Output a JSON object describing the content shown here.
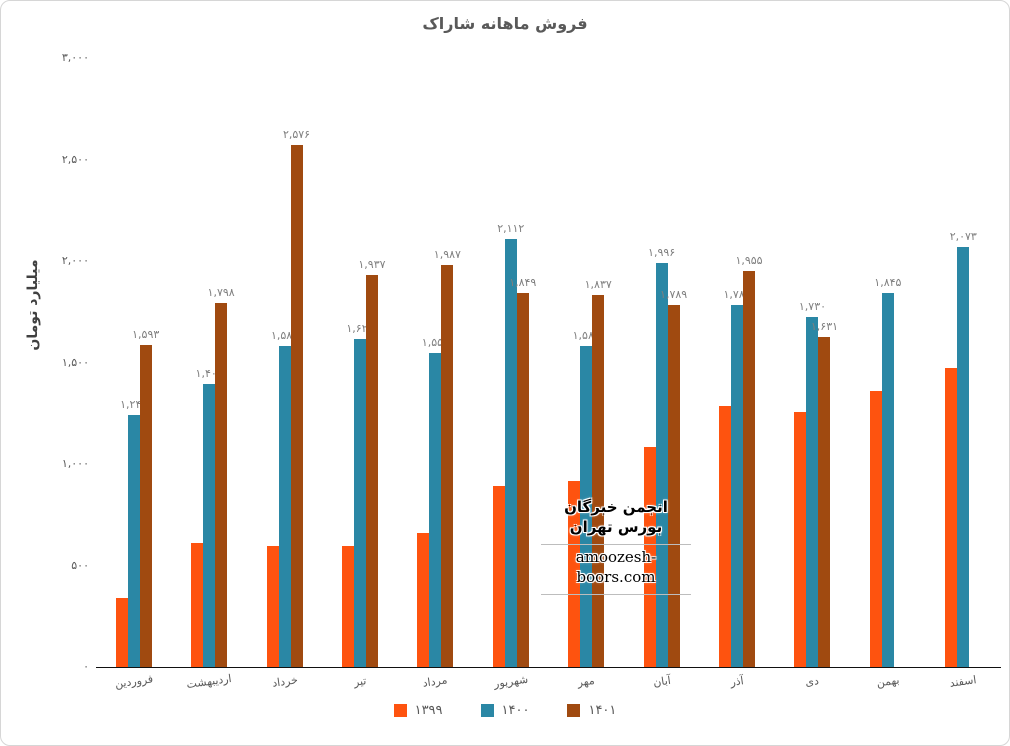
{
  "title": "فروش ماهانه شاراک",
  "y_axis": {
    "title": "میلیارد تومان",
    "ticks": [
      {
        "value": 3000,
        "label": "۳,۰۰۰"
      },
      {
        "value": 2500,
        "label": "۲,۵۰۰"
      },
      {
        "value": 2000,
        "label": "۲,۰۰۰"
      },
      {
        "value": 1500,
        "label": "۱,۵۰۰"
      },
      {
        "value": 1000,
        "label": "۱,۰۰۰"
      },
      {
        "value": 500,
        "label": "۵۰۰"
      },
      {
        "value": 0,
        "label": "۰"
      }
    ]
  },
  "watermark": {
    "line1": "انجمن خبرگان بورس تهران",
    "line2": "amoozesh-boors.com"
  },
  "chart_data": {
    "type": "bar",
    "title": "فروش ماهانه شاراک",
    "ylabel": "میلیارد تومان",
    "ylim": [
      0,
      3000
    ],
    "grid": false,
    "legend_position": "bottom",
    "categories": [
      "فروردین",
      "اردیبهشت",
      "خرداد",
      "تیر",
      "مرداد",
      "شهریور",
      "مهر",
      "آبان",
      "آذر",
      "دی",
      "بهمن",
      "اسفند"
    ],
    "series": [
      {
        "name": "۱۳۹۹",
        "color": "#fe530f",
        "values": [
          345,
          615,
          600,
          600,
          665,
          895,
          920,
          1090,
          1290,
          1260,
          1365,
          1480
        ],
        "labels": [
          null,
          null,
          null,
          null,
          null,
          null,
          null,
          null,
          null,
          null,
          null,
          null
        ]
      },
      {
        "name": "۱۴۰۰",
        "color": "#2a87a5",
        "values": [
          1247,
          1401,
          1586,
          1620,
          1553,
          2112,
          1586,
          1996,
          1786,
          1730,
          1845,
          2073
        ],
        "labels": [
          "۱,۲۴۷",
          "۱,۴۰۱",
          "۱,۵۸۶",
          "۱,۶۲۰",
          "۱,۵۵۳",
          "۲,۱۱۲",
          "۱,۵۸۶",
          "۱,۹۹۶",
          "۱,۷۸۶",
          "۱,۷۳۰",
          "۱,۸۴۵",
          "۲,۰۷۳"
        ]
      },
      {
        "name": "۱۴۰۱",
        "color": "#a04a10",
        "values": [
          1593,
          1798,
          2576,
          1937,
          1987,
          1849,
          1837,
          1789,
          1955,
          1631,
          null,
          null
        ],
        "labels": [
          "۱,۵۹۳",
          "۱,۷۹۸",
          "۲,۵۷۶",
          "۱,۹۳۷",
          "۱,۹۸۷",
          "۱,۸۴۹",
          "۱,۸۳۷",
          "۱,۷۸۹",
          "۱,۹۵۵",
          "۱,۶۳۱",
          null,
          null
        ]
      }
    ]
  }
}
